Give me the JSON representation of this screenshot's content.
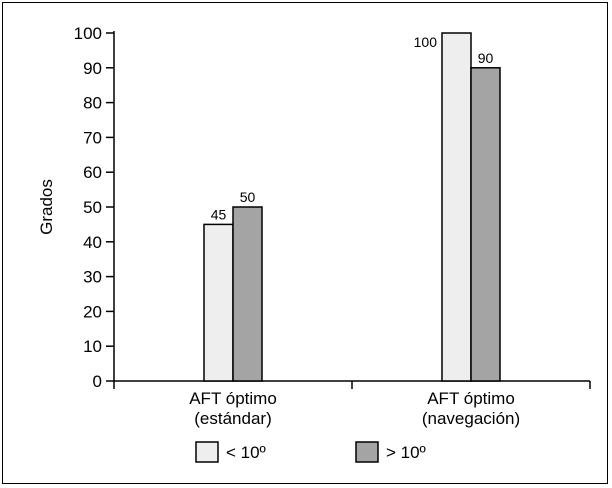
{
  "chart_data": {
    "type": "bar",
    "ylabel": "Grados",
    "ylim": [
      0,
      100
    ],
    "yticks": [
      0,
      10,
      20,
      30,
      40,
      50,
      60,
      70,
      80,
      90,
      100
    ],
    "categories": [
      [
        "AFT óptimo",
        "(estándar)"
      ],
      [
        "AFT óptimo",
        "(navegación)"
      ]
    ],
    "series": [
      {
        "name": "< 10º",
        "values": [
          45,
          100
        ],
        "color": "#eeeeee"
      },
      {
        "name": "> 10º",
        "values": [
          50,
          90
        ],
        "color": "#a4a4a4"
      }
    ],
    "data_labels": [
      [
        "45",
        "100"
      ],
      [
        "50",
        "90"
      ]
    ],
    "legend_position": "bottom",
    "grid": false
  }
}
